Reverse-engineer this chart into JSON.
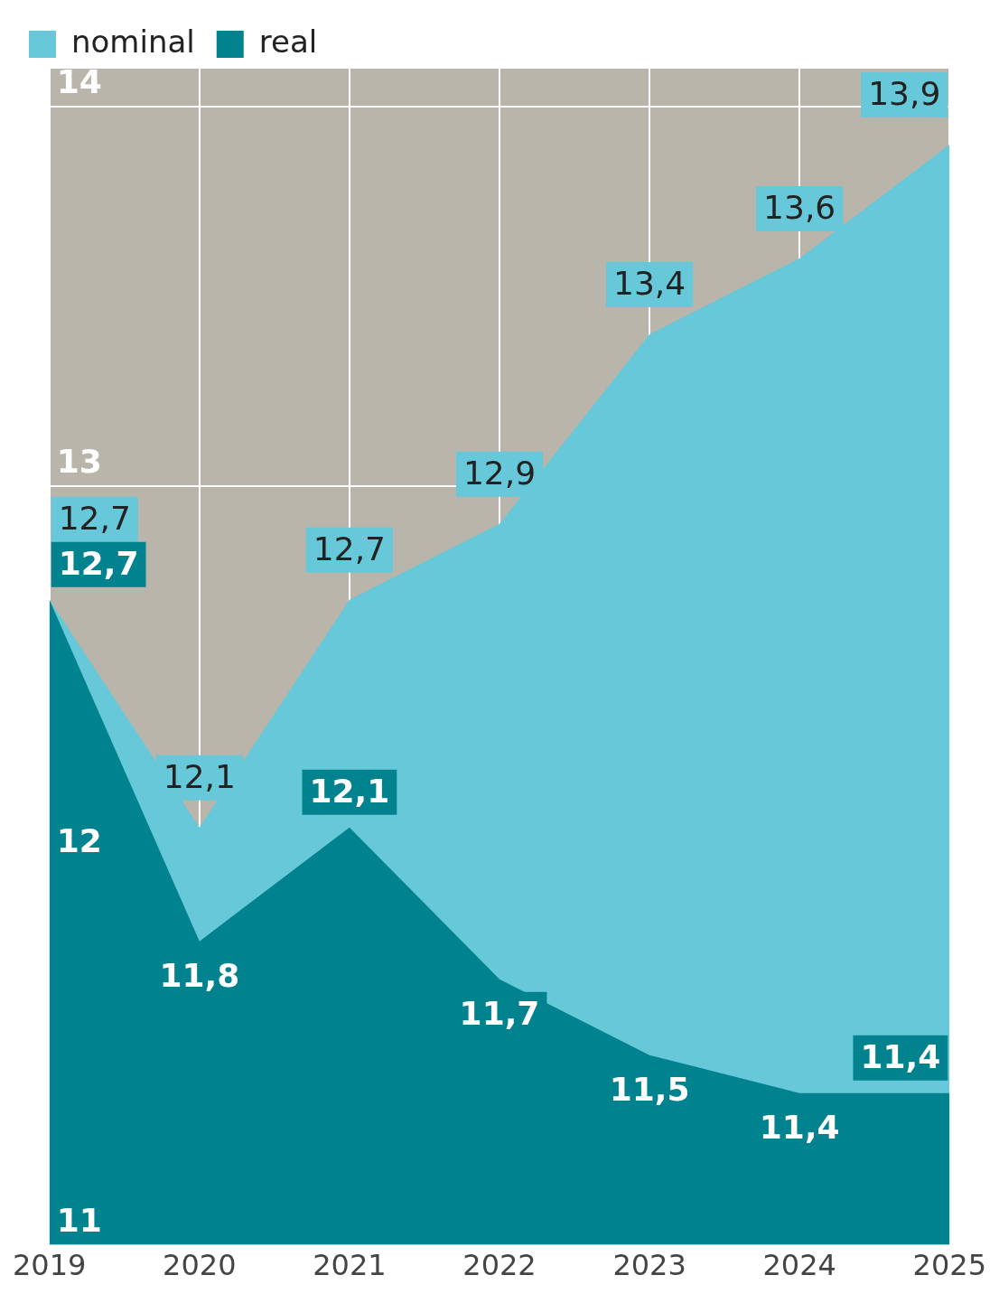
{
  "chart_data": {
    "type": "area",
    "categories": [
      "2019",
      "2020",
      "2021",
      "2022",
      "2023",
      "2024",
      "2025"
    ],
    "series": [
      {
        "name": "nominal",
        "color": "#66c8d8",
        "values": [
          12.7,
          12.1,
          12.7,
          12.9,
          13.4,
          13.6,
          13.9
        ],
        "value_labels": [
          "12,7",
          "12,1",
          "12,7",
          "12,9",
          "13,4",
          "13,6",
          "13,9"
        ]
      },
      {
        "name": "real",
        "color": "#00838f",
        "values": [
          12.7,
          11.8,
          12.1,
          11.7,
          11.5,
          11.4,
          11.4
        ],
        "value_labels": [
          "12,7",
          "11,8",
          "12,1",
          "11,7",
          "11,5",
          "11,4",
          "11,4"
        ]
      }
    ],
    "ylim": [
      11,
      14.1
    ],
    "yticks": [
      11,
      12,
      13,
      14
    ],
    "grid": true,
    "legend": "top left"
  }
}
